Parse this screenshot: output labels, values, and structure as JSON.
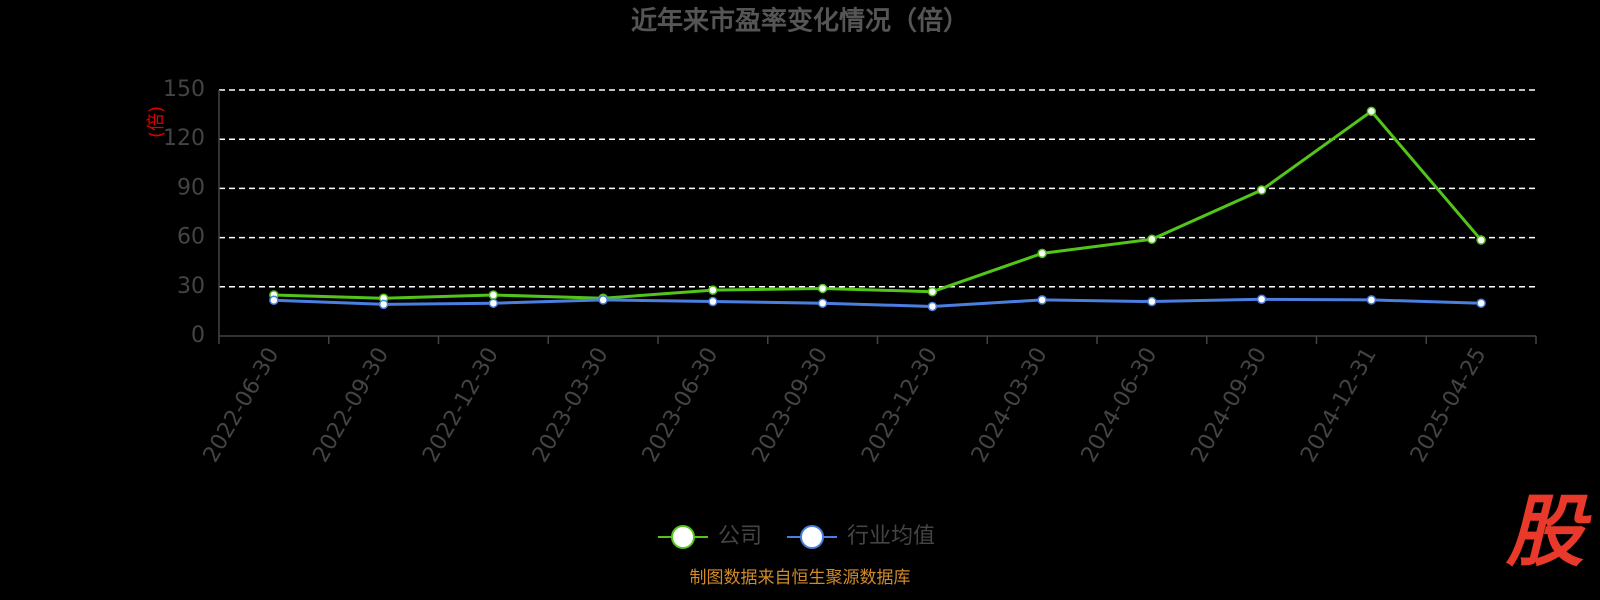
{
  "chart_data": {
    "type": "line",
    "title": "近年来市盈率变化情况（倍）",
    "y_label": "(倍)",
    "categories": [
      "2022-06-30",
      "2022-09-30",
      "2022-12-30",
      "2023-03-30",
      "2023-06-30",
      "2023-09-30",
      "2023-12-30",
      "2024-03-30",
      "2024-06-30",
      "2024-09-30",
      "2024-12-31",
      "2025-04-25"
    ],
    "series": [
      {
        "name": "公司",
        "color": "#52c41a",
        "values": [
          25,
          23,
          25,
          23,
          28,
          29,
          27,
          50.4,
          59,
          89,
          137,
          58.5
        ]
      },
      {
        "name": "行业均值",
        "color": "#4a7fe0",
        "values": [
          21.8,
          19.3,
          20,
          22,
          21,
          20,
          18,
          22,
          21,
          22.4,
          22,
          20
        ]
      }
    ],
    "ylim": [
      0,
      150
    ],
    "yticks": [
      0,
      30,
      60,
      90,
      120,
      150
    ],
    "grid": true,
    "source": "制图数据来自恒生聚源数据库",
    "watermark": "股"
  }
}
